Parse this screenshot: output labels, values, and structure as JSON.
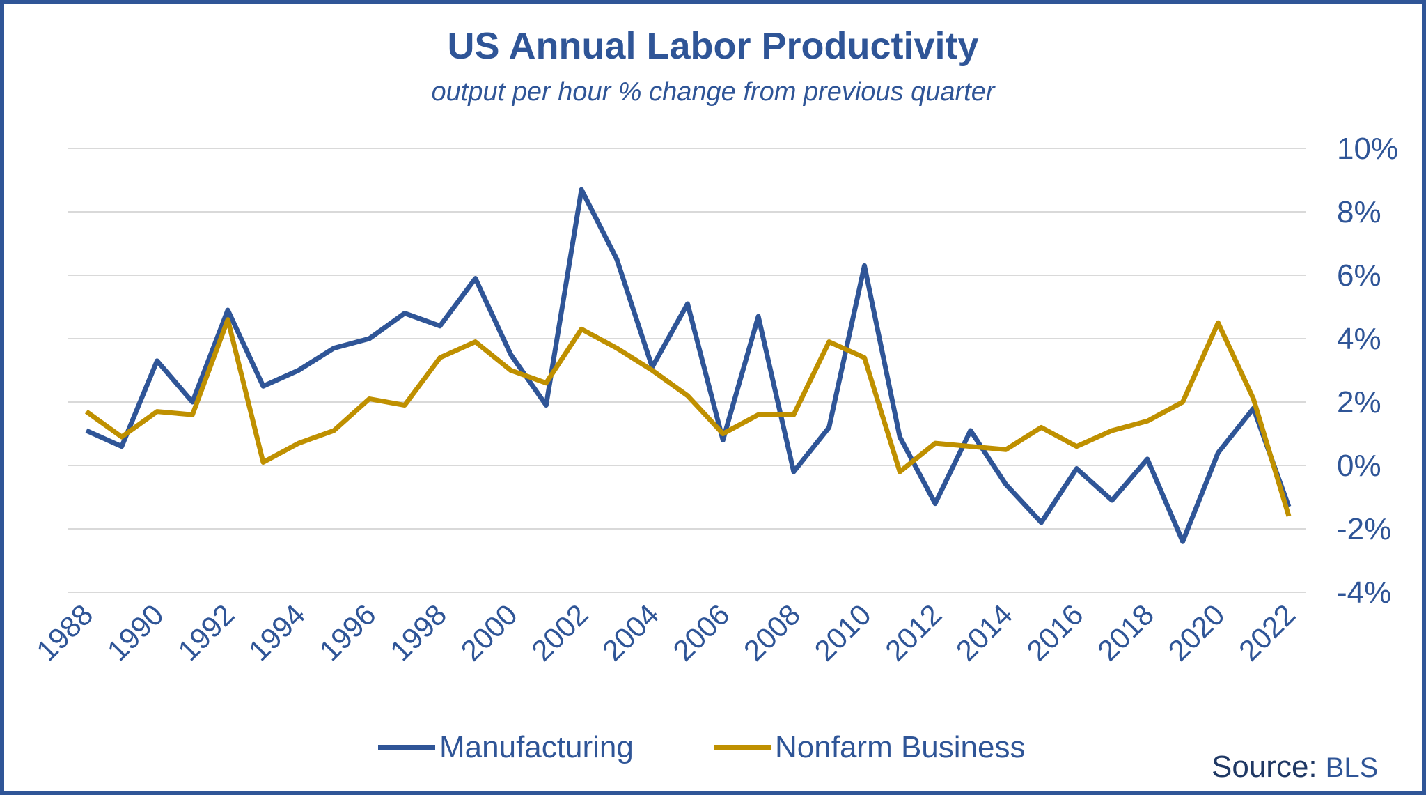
{
  "chart_data": {
    "type": "line",
    "title": "US Annual Labor Productivity",
    "subtitle": "output per hour % change from previous quarter",
    "source_label": "Source:",
    "source_value": "BLS",
    "x": [
      1988,
      1989,
      1990,
      1991,
      1992,
      1993,
      1994,
      1995,
      1996,
      1997,
      1998,
      1999,
      2000,
      2001,
      2002,
      2003,
      2004,
      2005,
      2006,
      2007,
      2008,
      2009,
      2010,
      2011,
      2012,
      2013,
      2014,
      2015,
      2016,
      2017,
      2018,
      2019,
      2020,
      2021,
      2022
    ],
    "x_tick_labels": [
      "1988",
      "1990",
      "1992",
      "1994",
      "1996",
      "1998",
      "2000",
      "2002",
      "2004",
      "2006",
      "2008",
      "2010",
      "2012",
      "2014",
      "2016",
      "2018",
      "2020",
      "2022"
    ],
    "y_ticks": [
      10,
      8,
      6,
      4,
      2,
      0,
      -2,
      -4
    ],
    "y_tick_labels": [
      "10%",
      "8%",
      "6%",
      "4%",
      "2%",
      "0%",
      "-2%",
      "-4%"
    ],
    "ylim": [
      -4,
      10
    ],
    "grid": "horizontal",
    "y_axis_side": "right",
    "legend_position": "bottom",
    "series": [
      {
        "name": "Manufacturing",
        "color": "#2f5597",
        "values": [
          1.1,
          0.6,
          3.3,
          2.0,
          4.9,
          2.5,
          3.0,
          3.7,
          4.0,
          4.8,
          4.4,
          5.9,
          3.5,
          1.9,
          8.7,
          6.5,
          3.1,
          5.1,
          0.8,
          4.7,
          -0.2,
          1.2,
          6.3,
          0.9,
          -1.2,
          1.1,
          -0.6,
          -1.8,
          -0.1,
          -1.1,
          0.2,
          -2.4,
          0.4,
          1.8,
          -1.3
        ]
      },
      {
        "name": "Nonfarm Business",
        "color": "#bf9000",
        "values": [
          1.7,
          0.9,
          1.7,
          1.6,
          4.6,
          0.1,
          0.7,
          1.1,
          2.1,
          1.9,
          3.4,
          3.9,
          3.0,
          2.6,
          4.3,
          3.7,
          3.0,
          2.2,
          1.0,
          1.6,
          1.6,
          3.9,
          3.4,
          -0.2,
          0.7,
          0.6,
          0.5,
          1.2,
          0.6,
          1.1,
          1.4,
          2.0,
          4.5,
          2.1,
          -1.6
        ]
      }
    ]
  }
}
